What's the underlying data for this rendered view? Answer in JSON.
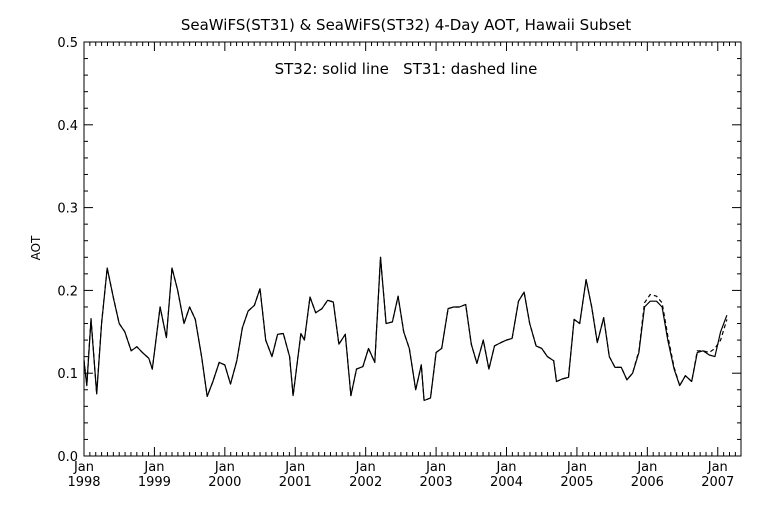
{
  "chart_data": {
    "type": "line",
    "title": "SeaWiFS(ST31) & SeaWiFS(ST32) 4-Day AOT, Hawaii Subset",
    "annotation": "ST32: solid line   ST31: dashed line",
    "ylabel": "AOT",
    "xlabel": "",
    "xlim": [
      1998.0,
      2007.33
    ],
    "ylim": [
      0.0,
      0.5
    ],
    "grid": false,
    "x_tick_labels": [
      {
        "month": "Jan",
        "year": "1998",
        "x": 1998
      },
      {
        "month": "Jan",
        "year": "1999",
        "x": 1999
      },
      {
        "month": "Jan",
        "year": "2000",
        "x": 2000
      },
      {
        "month": "Jan",
        "year": "2001",
        "x": 2001
      },
      {
        "month": "Jan",
        "year": "2002",
        "x": 2002
      },
      {
        "month": "Jan",
        "year": "2003",
        "x": 2003
      },
      {
        "month": "Jan",
        "year": "2004",
        "x": 2004
      },
      {
        "month": "Jan",
        "year": "2005",
        "x": 2005
      },
      {
        "month": "Jan",
        "year": "2006",
        "x": 2006
      },
      {
        "month": "Jan",
        "year": "2007",
        "x": 2007
      }
    ],
    "y_ticks": [
      "0.0",
      "0.1",
      "0.2",
      "0.3",
      "0.4",
      "0.5"
    ],
    "series": [
      {
        "style": "solid",
        "color": "#000000",
        "points": [
          [
            1998.0,
            0.115
          ],
          [
            1998.04,
            0.085
          ],
          [
            1998.1,
            0.165
          ],
          [
            1998.18,
            0.075
          ],
          [
            1998.25,
            0.16
          ],
          [
            1998.33,
            0.227
          ],
          [
            1998.42,
            0.19
          ],
          [
            1998.5,
            0.16
          ],
          [
            1998.58,
            0.15
          ],
          [
            1998.67,
            0.127
          ],
          [
            1998.75,
            0.132
          ],
          [
            1998.83,
            0.125
          ],
          [
            1998.92,
            0.118
          ],
          [
            1998.97,
            0.105
          ],
          [
            1999.08,
            0.18
          ],
          [
            1999.17,
            0.143
          ],
          [
            1999.25,
            0.227
          ],
          [
            1999.33,
            0.2
          ],
          [
            1999.42,
            0.16
          ],
          [
            1999.5,
            0.18
          ],
          [
            1999.58,
            0.165
          ],
          [
            1999.67,
            0.12
          ],
          [
            1999.75,
            0.072
          ],
          [
            1999.83,
            0.09
          ],
          [
            1999.92,
            0.113
          ],
          [
            2000.0,
            0.11
          ],
          [
            2000.08,
            0.087
          ],
          [
            2000.17,
            0.115
          ],
          [
            2000.25,
            0.155
          ],
          [
            2000.33,
            0.175
          ],
          [
            2000.42,
            0.182
          ],
          [
            2000.5,
            0.202
          ],
          [
            2000.58,
            0.14
          ],
          [
            2000.67,
            0.12
          ],
          [
            2000.75,
            0.147
          ],
          [
            2000.83,
            0.148
          ],
          [
            2000.92,
            0.12
          ],
          [
            2000.97,
            0.073
          ],
          [
            2001.08,
            0.148
          ],
          [
            2001.13,
            0.14
          ],
          [
            2001.21,
            0.192
          ],
          [
            2001.29,
            0.173
          ],
          [
            2001.38,
            0.178
          ],
          [
            2001.46,
            0.188
          ],
          [
            2001.54,
            0.186
          ],
          [
            2001.62,
            0.135
          ],
          [
            2001.71,
            0.147
          ],
          [
            2001.79,
            0.073
          ],
          [
            2001.87,
            0.105
          ],
          [
            2001.96,
            0.108
          ],
          [
            2002.04,
            0.13
          ],
          [
            2002.13,
            0.113
          ],
          [
            2002.21,
            0.24
          ],
          [
            2002.29,
            0.16
          ],
          [
            2002.38,
            0.162
          ],
          [
            2002.46,
            0.193
          ],
          [
            2002.54,
            0.15
          ],
          [
            2002.62,
            0.13
          ],
          [
            2002.71,
            0.08
          ],
          [
            2002.79,
            0.11
          ],
          [
            2002.83,
            0.067
          ],
          [
            2002.92,
            0.07
          ],
          [
            2003.0,
            0.125
          ],
          [
            2003.08,
            0.13
          ],
          [
            2003.17,
            0.178
          ],
          [
            2003.25,
            0.18
          ],
          [
            2003.33,
            0.18
          ],
          [
            2003.42,
            0.183
          ],
          [
            2003.5,
            0.135
          ],
          [
            2003.58,
            0.112
          ],
          [
            2003.67,
            0.14
          ],
          [
            2003.75,
            0.105
          ],
          [
            2003.83,
            0.133
          ],
          [
            2003.92,
            0.137
          ],
          [
            2004.0,
            0.14
          ],
          [
            2004.08,
            0.142
          ],
          [
            2004.17,
            0.187
          ],
          [
            2004.25,
            0.198
          ],
          [
            2004.33,
            0.16
          ],
          [
            2004.42,
            0.133
          ],
          [
            2004.5,
            0.13
          ],
          [
            2004.58,
            0.12
          ],
          [
            2004.67,
            0.115
          ],
          [
            2004.71,
            0.09
          ],
          [
            2004.79,
            0.093
          ],
          [
            2004.88,
            0.095
          ],
          [
            2004.96,
            0.165
          ],
          [
            2005.04,
            0.16
          ],
          [
            2005.13,
            0.213
          ],
          [
            2005.21,
            0.18
          ],
          [
            2005.29,
            0.137
          ],
          [
            2005.38,
            0.167
          ],
          [
            2005.46,
            0.12
          ],
          [
            2005.54,
            0.107
          ],
          [
            2005.63,
            0.107
          ],
          [
            2005.71,
            0.092
          ],
          [
            2005.79,
            0.1
          ],
          [
            2005.88,
            0.125
          ],
          [
            2005.96,
            0.18
          ],
          [
            2006.04,
            0.187
          ],
          [
            2006.13,
            0.187
          ],
          [
            2006.21,
            0.18
          ],
          [
            2006.29,
            0.14
          ],
          [
            2006.38,
            0.105
          ],
          [
            2006.46,
            0.085
          ],
          [
            2006.54,
            0.097
          ],
          [
            2006.63,
            0.09
          ],
          [
            2006.71,
            0.125
          ],
          [
            2006.79,
            0.127
          ],
          [
            2006.88,
            0.122
          ],
          [
            2006.96,
            0.12
          ],
          [
            2007.04,
            0.15
          ],
          [
            2007.13,
            0.17
          ]
        ]
      },
      {
        "style": "dashed",
        "color": "#000000",
        "points": [
          [
            1998.0,
            0.116
          ],
          [
            1998.04,
            0.086
          ],
          [
            1998.1,
            0.166
          ],
          [
            1998.18,
            0.075
          ],
          [
            1998.25,
            0.161
          ],
          [
            1998.33,
            0.227
          ],
          [
            1998.42,
            0.19
          ],
          [
            1998.5,
            0.16
          ],
          [
            1998.58,
            0.15
          ],
          [
            1998.67,
            0.127
          ],
          [
            1998.75,
            0.132
          ],
          [
            1998.83,
            0.125
          ],
          [
            1998.92,
            0.118
          ],
          [
            1998.97,
            0.105
          ],
          [
            1999.08,
            0.18
          ],
          [
            1999.17,
            0.143
          ],
          [
            1999.25,
            0.227
          ],
          [
            1999.33,
            0.2
          ],
          [
            1999.42,
            0.16
          ],
          [
            1999.5,
            0.18
          ],
          [
            1999.58,
            0.165
          ],
          [
            1999.67,
            0.12
          ],
          [
            1999.75,
            0.072
          ],
          [
            1999.83,
            0.09
          ],
          [
            1999.92,
            0.113
          ],
          [
            2000.0,
            0.11
          ],
          [
            2000.08,
            0.087
          ],
          [
            2000.17,
            0.115
          ],
          [
            2000.25,
            0.155
          ],
          [
            2000.33,
            0.175
          ],
          [
            2000.42,
            0.182
          ],
          [
            2000.5,
            0.202
          ],
          [
            2000.58,
            0.14
          ],
          [
            2000.67,
            0.12
          ],
          [
            2000.75,
            0.147
          ],
          [
            2000.83,
            0.148
          ],
          [
            2000.92,
            0.12
          ],
          [
            2000.97,
            0.073
          ],
          [
            2001.08,
            0.148
          ],
          [
            2001.13,
            0.14
          ],
          [
            2001.21,
            0.192
          ],
          [
            2001.29,
            0.173
          ],
          [
            2001.38,
            0.178
          ],
          [
            2001.46,
            0.188
          ],
          [
            2001.54,
            0.186
          ],
          [
            2001.62,
            0.135
          ],
          [
            2001.71,
            0.147
          ],
          [
            2001.79,
            0.073
          ],
          [
            2001.87,
            0.105
          ],
          [
            2001.96,
            0.108
          ],
          [
            2002.04,
            0.13
          ],
          [
            2002.13,
            0.113
          ],
          [
            2002.21,
            0.24
          ],
          [
            2002.29,
            0.16
          ],
          [
            2002.38,
            0.162
          ],
          [
            2002.46,
            0.193
          ],
          [
            2002.54,
            0.15
          ],
          [
            2002.62,
            0.13
          ],
          [
            2002.71,
            0.08
          ],
          [
            2002.79,
            0.11
          ],
          [
            2002.83,
            0.067
          ],
          [
            2002.92,
            0.07
          ],
          [
            2003.0,
            0.125
          ],
          [
            2003.08,
            0.13
          ],
          [
            2003.17,
            0.178
          ],
          [
            2003.25,
            0.18
          ],
          [
            2003.33,
            0.18
          ],
          [
            2003.42,
            0.183
          ],
          [
            2003.5,
            0.135
          ],
          [
            2003.58,
            0.112
          ],
          [
            2003.67,
            0.14
          ],
          [
            2003.75,
            0.105
          ],
          [
            2003.83,
            0.133
          ],
          [
            2003.92,
            0.137
          ],
          [
            2004.0,
            0.14
          ],
          [
            2004.08,
            0.142
          ],
          [
            2004.17,
            0.187
          ],
          [
            2004.25,
            0.198
          ],
          [
            2004.33,
            0.16
          ],
          [
            2004.42,
            0.133
          ],
          [
            2004.5,
            0.13
          ],
          [
            2004.58,
            0.12
          ],
          [
            2004.67,
            0.115
          ],
          [
            2004.71,
            0.09
          ],
          [
            2004.79,
            0.093
          ],
          [
            2004.88,
            0.095
          ],
          [
            2004.96,
            0.165
          ],
          [
            2005.04,
            0.16
          ],
          [
            2005.13,
            0.213
          ],
          [
            2005.21,
            0.18
          ],
          [
            2005.29,
            0.137
          ],
          [
            2005.38,
            0.167
          ],
          [
            2005.46,
            0.12
          ],
          [
            2005.54,
            0.107
          ],
          [
            2005.63,
            0.107
          ],
          [
            2005.71,
            0.092
          ],
          [
            2005.79,
            0.1
          ],
          [
            2005.88,
            0.127
          ],
          [
            2005.96,
            0.185
          ],
          [
            2006.04,
            0.195
          ],
          [
            2006.13,
            0.193
          ],
          [
            2006.21,
            0.185
          ],
          [
            2006.29,
            0.145
          ],
          [
            2006.38,
            0.107
          ],
          [
            2006.46,
            0.085
          ],
          [
            2006.54,
            0.097
          ],
          [
            2006.63,
            0.09
          ],
          [
            2006.71,
            0.127
          ],
          [
            2006.79,
            0.127
          ],
          [
            2006.88,
            0.125
          ],
          [
            2006.96,
            0.13
          ],
          [
            2007.04,
            0.14
          ],
          [
            2007.13,
            0.165
          ]
        ]
      }
    ]
  }
}
